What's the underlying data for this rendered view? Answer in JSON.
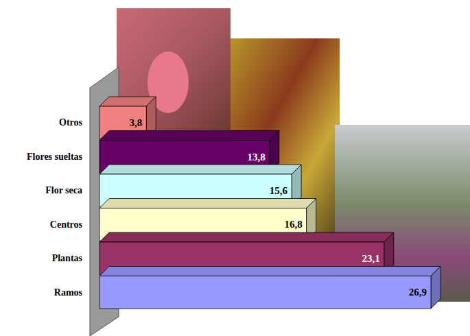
{
  "chart_data": {
    "type": "bar",
    "orientation": "horizontal",
    "categories": [
      "Otros",
      "Flores sueltas",
      "Flor seca",
      "Centros",
      "Plantas",
      "Ramos"
    ],
    "values": [
      3.8,
      13.8,
      15.6,
      16.8,
      23.1,
      26.9
    ],
    "value_labels": [
      "3,8",
      "13,8",
      "15,6",
      "16,8",
      "23,1",
      "26,9"
    ],
    "colors": [
      "#f08080",
      "#660066",
      "#ccffff",
      "#ffffcc",
      "#993366",
      "#9999ff"
    ],
    "data_labels": true,
    "tick_labels": "y",
    "grid": false
  }
}
